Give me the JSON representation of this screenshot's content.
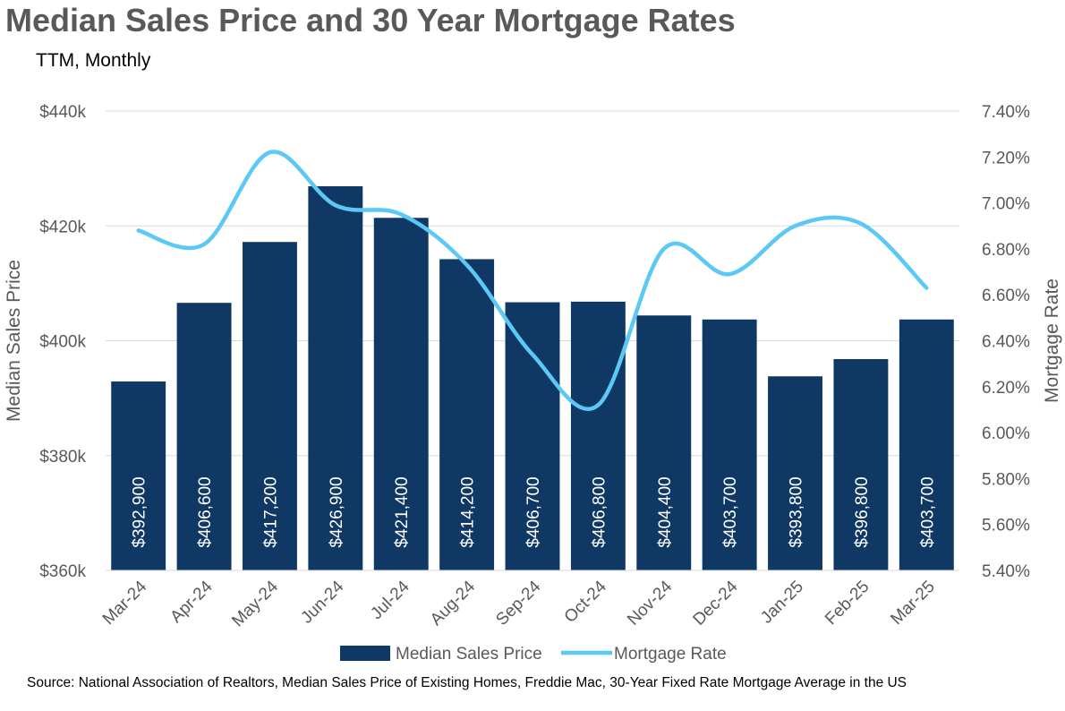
{
  "title": "Median Sales Price and 30 Year Mortgage Rates",
  "subtitle": "TTM, Monthly",
  "source": "Source: National Association of Realtors, Median Sales Price of Existing Homes, Freddie Mac, 30-Year Fixed Rate Mortgage Average in the US",
  "colors": {
    "bar": "#0f3864",
    "line": "#5bc8f5",
    "grid": "#d9d9d9",
    "text": "#595959"
  },
  "chart_data": {
    "type": "bar",
    "categories": [
      "Mar-24",
      "Apr-24",
      "May-24",
      "Jun-24",
      "Jul-24",
      "Aug-24",
      "Sep-24",
      "Oct-24",
      "Nov-24",
      "Dec-24",
      "Jan-25",
      "Feb-25",
      "Mar-25"
    ],
    "series": [
      {
        "name": "Median Sales Price",
        "type": "bar",
        "axis": "left",
        "values": [
          392900,
          406600,
          417200,
          426900,
          421400,
          414200,
          406700,
          406800,
          404400,
          403700,
          393800,
          396800,
          403700
        ],
        "labels": [
          "$392,900",
          "$406,600",
          "$417,200",
          "$426,900",
          "$421,400",
          "$414,200",
          "$406,700",
          "$406,800",
          "$404,400",
          "$403,700",
          "$393,800",
          "$396,800",
          "$403,700"
        ]
      },
      {
        "name": "Mortgage Rate",
        "type": "line",
        "axis": "right",
        "values": [
          6.88,
          6.82,
          7.22,
          6.99,
          6.95,
          6.73,
          6.34,
          6.12,
          6.8,
          6.69,
          6.9,
          6.91,
          6.63
        ]
      }
    ],
    "ylabel": "Median Sales Price",
    "ylabel_right": "Mortgage Rate",
    "ylim": [
      360000,
      440000
    ],
    "ylim_right": [
      5.4,
      7.4
    ],
    "yticks": [
      "$360k",
      "$380k",
      "$400k",
      "$420k",
      "$440k"
    ],
    "yticks_right": [
      "5.40%",
      "5.60%",
      "5.80%",
      "6.00%",
      "6.20%",
      "6.40%",
      "6.60%",
      "6.80%",
      "7.00%",
      "7.20%",
      "7.40%"
    ],
    "grid": true,
    "legend": "bottom"
  }
}
